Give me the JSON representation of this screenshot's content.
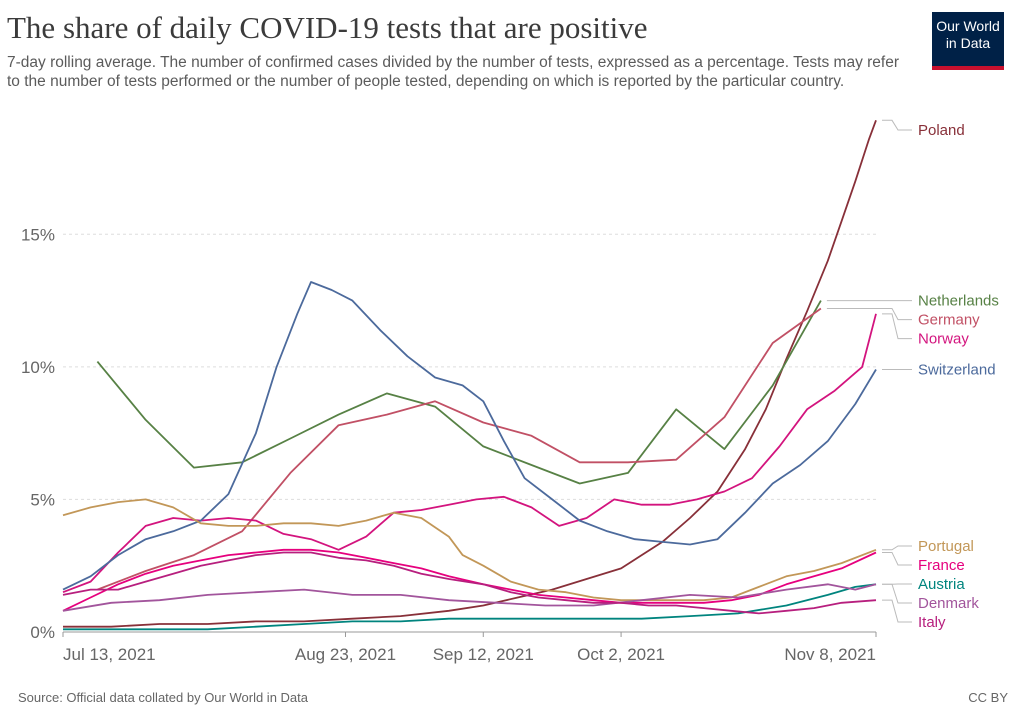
{
  "title": "The share of daily COVID-19 tests that are positive",
  "subtitle": "7-day rolling average. The number of confirmed cases divided by the number of tests, expressed as a percentage. Tests may refer to the number of tests performed or the number of people tested, depending on which is reported by the particular country.",
  "logo": {
    "line1": "Our World",
    "line2": "in Data",
    "bg_color": "#002147",
    "accent_color": "#c8102e"
  },
  "source": "Source: Official data collated by Our World in Data",
  "license": "CC BY",
  "chart_data": {
    "type": "line",
    "title": "The share of daily COVID-19 tests that are positive",
    "xlabel": "",
    "ylabel": "",
    "x_start": "2021-07-13",
    "x_end": "2021-11-08",
    "ylim": [
      0,
      19.5
    ],
    "x_ticks": [
      {
        "date": "2021-07-13",
        "label": "Jul 13, 2021"
      },
      {
        "date": "2021-08-23",
        "label": "Aug 23, 2021"
      },
      {
        "date": "2021-09-12",
        "label": "Sep 12, 2021"
      },
      {
        "date": "2021-10-02",
        "label": "Oct 2, 2021"
      },
      {
        "date": "2021-11-08",
        "label": "Nov 8, 2021"
      }
    ],
    "y_ticks": [
      {
        "value": 0,
        "label": "0%"
      },
      {
        "value": 5,
        "label": "5%"
      },
      {
        "value": 10,
        "label": "10%"
      },
      {
        "value": 15,
        "label": "15%"
      }
    ],
    "grid": "horizontal dashed",
    "legend": "right (line-end labels)",
    "series": [
      {
        "name": "Poland",
        "color": "#883039",
        "points": [
          [
            "2021-07-13",
            0.2
          ],
          [
            "2021-07-20",
            0.2
          ],
          [
            "2021-07-27",
            0.3
          ],
          [
            "2021-08-03",
            0.3
          ],
          [
            "2021-08-10",
            0.4
          ],
          [
            "2021-08-17",
            0.4
          ],
          [
            "2021-08-24",
            0.5
          ],
          [
            "2021-08-31",
            0.6
          ],
          [
            "2021-09-07",
            0.8
          ],
          [
            "2021-09-12",
            1.0
          ],
          [
            "2021-09-17",
            1.3
          ],
          [
            "2021-09-22",
            1.6
          ],
          [
            "2021-09-27",
            2.0
          ],
          [
            "2021-10-02",
            2.4
          ],
          [
            "2021-10-05",
            2.9
          ],
          [
            "2021-10-08",
            3.4
          ],
          [
            "2021-10-12",
            4.3
          ],
          [
            "2021-10-16",
            5.3
          ],
          [
            "2021-10-20",
            6.9
          ],
          [
            "2021-10-23",
            8.4
          ],
          [
            "2021-10-26",
            10.3
          ],
          [
            "2021-10-29",
            12.1
          ],
          [
            "2021-11-01",
            14.0
          ],
          [
            "2021-11-03",
            15.5
          ],
          [
            "2021-11-05",
            17.0
          ],
          [
            "2021-11-07",
            18.6
          ],
          [
            "2021-11-08",
            19.3
          ]
        ]
      },
      {
        "name": "Netherlands",
        "color": "#578145",
        "points": [
          [
            "2021-07-18",
            10.2
          ],
          [
            "2021-07-25",
            8.0
          ],
          [
            "2021-08-01",
            6.2
          ],
          [
            "2021-08-08",
            6.4
          ],
          [
            "2021-08-15",
            7.3
          ],
          [
            "2021-08-22",
            8.2
          ],
          [
            "2021-08-29",
            9.0
          ],
          [
            "2021-09-05",
            8.5
          ],
          [
            "2021-09-12",
            7.0
          ],
          [
            "2021-09-19",
            6.3
          ],
          [
            "2021-09-26",
            5.6
          ],
          [
            "2021-10-03",
            6.0
          ],
          [
            "2021-10-10",
            8.4
          ],
          [
            "2021-10-17",
            6.9
          ],
          [
            "2021-10-24",
            9.3
          ],
          [
            "2021-10-31",
            12.5
          ]
        ]
      },
      {
        "name": "Germany",
        "color": "#c15065",
        "points": [
          [
            "2021-07-18",
            1.6
          ],
          [
            "2021-07-25",
            2.3
          ],
          [
            "2021-08-01",
            2.9
          ],
          [
            "2021-08-08",
            3.8
          ],
          [
            "2021-08-15",
            6.0
          ],
          [
            "2021-08-22",
            7.8
          ],
          [
            "2021-08-29",
            8.2
          ],
          [
            "2021-09-05",
            8.7
          ],
          [
            "2021-09-12",
            7.9
          ],
          [
            "2021-09-19",
            7.4
          ],
          [
            "2021-09-26",
            6.4
          ],
          [
            "2021-10-03",
            6.4
          ],
          [
            "2021-10-10",
            6.5
          ],
          [
            "2021-10-17",
            8.1
          ],
          [
            "2021-10-24",
            10.9
          ],
          [
            "2021-10-31",
            12.2
          ]
        ]
      },
      {
        "name": "Norway",
        "color": "#d3147e",
        "points": [
          [
            "2021-07-13",
            1.5
          ],
          [
            "2021-07-17",
            1.9
          ],
          [
            "2021-07-21",
            3.0
          ],
          [
            "2021-07-25",
            4.0
          ],
          [
            "2021-07-29",
            4.3
          ],
          [
            "2021-08-02",
            4.2
          ],
          [
            "2021-08-06",
            4.3
          ],
          [
            "2021-08-10",
            4.2
          ],
          [
            "2021-08-14",
            3.7
          ],
          [
            "2021-08-18",
            3.5
          ],
          [
            "2021-08-22",
            3.1
          ],
          [
            "2021-08-26",
            3.6
          ],
          [
            "2021-08-30",
            4.5
          ],
          [
            "2021-09-03",
            4.6
          ],
          [
            "2021-09-07",
            4.8
          ],
          [
            "2021-09-11",
            5.0
          ],
          [
            "2021-09-15",
            5.1
          ],
          [
            "2021-09-19",
            4.7
          ],
          [
            "2021-09-23",
            4.0
          ],
          [
            "2021-09-27",
            4.3
          ],
          [
            "2021-10-01",
            5.0
          ],
          [
            "2021-10-05",
            4.8
          ],
          [
            "2021-10-09",
            4.8
          ],
          [
            "2021-10-13",
            5.0
          ],
          [
            "2021-10-17",
            5.3
          ],
          [
            "2021-10-21",
            5.8
          ],
          [
            "2021-10-25",
            7.0
          ],
          [
            "2021-10-29",
            8.4
          ],
          [
            "2021-11-02",
            9.1
          ],
          [
            "2021-11-06",
            10.0
          ],
          [
            "2021-11-08",
            12.0
          ]
        ]
      },
      {
        "name": "Switzerland",
        "color": "#4c6a9c",
        "points": [
          [
            "2021-07-13",
            1.6
          ],
          [
            "2021-07-17",
            2.1
          ],
          [
            "2021-07-21",
            2.9
          ],
          [
            "2021-07-25",
            3.5
          ],
          [
            "2021-07-29",
            3.8
          ],
          [
            "2021-08-02",
            4.2
          ],
          [
            "2021-08-06",
            5.2
          ],
          [
            "2021-08-10",
            7.5
          ],
          [
            "2021-08-13",
            10.0
          ],
          [
            "2021-08-16",
            12.0
          ],
          [
            "2021-08-18",
            13.2
          ],
          [
            "2021-08-21",
            12.9
          ],
          [
            "2021-08-24",
            12.5
          ],
          [
            "2021-08-28",
            11.4
          ],
          [
            "2021-09-01",
            10.4
          ],
          [
            "2021-09-05",
            9.6
          ],
          [
            "2021-09-09",
            9.3
          ],
          [
            "2021-09-12",
            8.7
          ],
          [
            "2021-09-15",
            7.2
          ],
          [
            "2021-09-18",
            5.8
          ],
          [
            "2021-09-22",
            5.0
          ],
          [
            "2021-09-26",
            4.2
          ],
          [
            "2021-09-30",
            3.8
          ],
          [
            "2021-10-04",
            3.5
          ],
          [
            "2021-10-08",
            3.4
          ],
          [
            "2021-10-12",
            3.3
          ],
          [
            "2021-10-16",
            3.5
          ],
          [
            "2021-10-20",
            4.5
          ],
          [
            "2021-10-24",
            5.6
          ],
          [
            "2021-10-28",
            6.3
          ],
          [
            "2021-11-01",
            7.2
          ],
          [
            "2021-11-05",
            8.6
          ],
          [
            "2021-11-08",
            9.9
          ]
        ]
      },
      {
        "name": "Portugal",
        "color": "#c29758",
        "points": [
          [
            "2021-07-13",
            4.4
          ],
          [
            "2021-07-17",
            4.7
          ],
          [
            "2021-07-21",
            4.9
          ],
          [
            "2021-07-25",
            5.0
          ],
          [
            "2021-07-29",
            4.7
          ],
          [
            "2021-08-02",
            4.1
          ],
          [
            "2021-08-06",
            4.0
          ],
          [
            "2021-08-10",
            4.0
          ],
          [
            "2021-08-14",
            4.1
          ],
          [
            "2021-08-18",
            4.1
          ],
          [
            "2021-08-22",
            4.0
          ],
          [
            "2021-08-26",
            4.2
          ],
          [
            "2021-08-30",
            4.5
          ],
          [
            "2021-09-03",
            4.3
          ],
          [
            "2021-09-07",
            3.6
          ],
          [
            "2021-09-09",
            2.9
          ],
          [
            "2021-09-12",
            2.5
          ],
          [
            "2021-09-16",
            1.9
          ],
          [
            "2021-09-20",
            1.6
          ],
          [
            "2021-09-24",
            1.5
          ],
          [
            "2021-09-28",
            1.3
          ],
          [
            "2021-10-02",
            1.2
          ],
          [
            "2021-10-06",
            1.2
          ],
          [
            "2021-10-10",
            1.2
          ],
          [
            "2021-10-14",
            1.2
          ],
          [
            "2021-10-18",
            1.3
          ],
          [
            "2021-10-22",
            1.7
          ],
          [
            "2021-10-26",
            2.1
          ],
          [
            "2021-10-30",
            2.3
          ],
          [
            "2021-11-03",
            2.6
          ],
          [
            "2021-11-08",
            3.1
          ]
        ]
      },
      {
        "name": "France",
        "color": "#e6007e",
        "points": [
          [
            "2021-07-13",
            0.8
          ],
          [
            "2021-07-17",
            1.3
          ],
          [
            "2021-07-21",
            1.8
          ],
          [
            "2021-07-25",
            2.2
          ],
          [
            "2021-07-29",
            2.5
          ],
          [
            "2021-08-02",
            2.7
          ],
          [
            "2021-08-06",
            2.9
          ],
          [
            "2021-08-10",
            3.0
          ],
          [
            "2021-08-14",
            3.1
          ],
          [
            "2021-08-18",
            3.1
          ],
          [
            "2021-08-22",
            3.0
          ],
          [
            "2021-08-26",
            2.8
          ],
          [
            "2021-08-30",
            2.6
          ],
          [
            "2021-09-03",
            2.4
          ],
          [
            "2021-09-07",
            2.1
          ],
          [
            "2021-09-12",
            1.8
          ],
          [
            "2021-09-16",
            1.6
          ],
          [
            "2021-09-20",
            1.4
          ],
          [
            "2021-09-24",
            1.3
          ],
          [
            "2021-09-28",
            1.2
          ],
          [
            "2021-10-02",
            1.1
          ],
          [
            "2021-10-06",
            1.1
          ],
          [
            "2021-10-10",
            1.1
          ],
          [
            "2021-10-14",
            1.1
          ],
          [
            "2021-10-18",
            1.2
          ],
          [
            "2021-10-22",
            1.4
          ],
          [
            "2021-10-26",
            1.8
          ],
          [
            "2021-10-30",
            2.1
          ],
          [
            "2021-11-03",
            2.4
          ],
          [
            "2021-11-08",
            3.0
          ]
        ]
      },
      {
        "name": "Austria",
        "color": "#00847e",
        "points": [
          [
            "2021-07-13",
            0.1
          ],
          [
            "2021-07-20",
            0.1
          ],
          [
            "2021-07-27",
            0.1
          ],
          [
            "2021-08-03",
            0.1
          ],
          [
            "2021-08-10",
            0.2
          ],
          [
            "2021-08-17",
            0.3
          ],
          [
            "2021-08-24",
            0.4
          ],
          [
            "2021-08-31",
            0.4
          ],
          [
            "2021-09-07",
            0.5
          ],
          [
            "2021-09-14",
            0.5
          ],
          [
            "2021-09-21",
            0.5
          ],
          [
            "2021-09-28",
            0.5
          ],
          [
            "2021-10-05",
            0.5
          ],
          [
            "2021-10-12",
            0.6
          ],
          [
            "2021-10-19",
            0.7
          ],
          [
            "2021-10-26",
            1.0
          ],
          [
            "2021-11-01",
            1.4
          ],
          [
            "2021-11-05",
            1.7
          ],
          [
            "2021-11-08",
            1.8
          ]
        ]
      },
      {
        "name": "Denmark",
        "color": "#a2559c",
        "points": [
          [
            "2021-07-13",
            0.8
          ],
          [
            "2021-07-20",
            1.1
          ],
          [
            "2021-07-27",
            1.2
          ],
          [
            "2021-08-03",
            1.4
          ],
          [
            "2021-08-10",
            1.5
          ],
          [
            "2021-08-17",
            1.6
          ],
          [
            "2021-08-24",
            1.4
          ],
          [
            "2021-08-31",
            1.4
          ],
          [
            "2021-09-07",
            1.2
          ],
          [
            "2021-09-14",
            1.1
          ],
          [
            "2021-09-21",
            1.0
          ],
          [
            "2021-09-28",
            1.0
          ],
          [
            "2021-10-05",
            1.2
          ],
          [
            "2021-10-12",
            1.4
          ],
          [
            "2021-10-19",
            1.3
          ],
          [
            "2021-10-26",
            1.6
          ],
          [
            "2021-11-01",
            1.8
          ],
          [
            "2021-11-05",
            1.6
          ],
          [
            "2021-11-08",
            1.8
          ]
        ]
      },
      {
        "name": "Italy",
        "color": "#b71f7e",
        "points": [
          [
            "2021-07-13",
            1.4
          ],
          [
            "2021-07-17",
            1.6
          ],
          [
            "2021-07-21",
            1.6
          ],
          [
            "2021-07-25",
            1.9
          ],
          [
            "2021-07-29",
            2.2
          ],
          [
            "2021-08-02",
            2.5
          ],
          [
            "2021-08-06",
            2.7
          ],
          [
            "2021-08-10",
            2.9
          ],
          [
            "2021-08-14",
            3.0
          ],
          [
            "2021-08-18",
            3.0
          ],
          [
            "2021-08-22",
            2.8
          ],
          [
            "2021-08-26",
            2.7
          ],
          [
            "2021-08-30",
            2.5
          ],
          [
            "2021-09-03",
            2.2
          ],
          [
            "2021-09-07",
            2.0
          ],
          [
            "2021-09-12",
            1.8
          ],
          [
            "2021-09-16",
            1.5
          ],
          [
            "2021-09-20",
            1.3
          ],
          [
            "2021-09-24",
            1.2
          ],
          [
            "2021-09-28",
            1.1
          ],
          [
            "2021-10-02",
            1.1
          ],
          [
            "2021-10-06",
            1.0
          ],
          [
            "2021-10-10",
            1.0
          ],
          [
            "2021-10-14",
            0.9
          ],
          [
            "2021-10-18",
            0.8
          ],
          [
            "2021-10-22",
            0.7
          ],
          [
            "2021-10-26",
            0.8
          ],
          [
            "2021-10-30",
            0.9
          ],
          [
            "2021-11-03",
            1.1
          ],
          [
            "2021-11-08",
            1.2
          ]
        ]
      }
    ]
  }
}
